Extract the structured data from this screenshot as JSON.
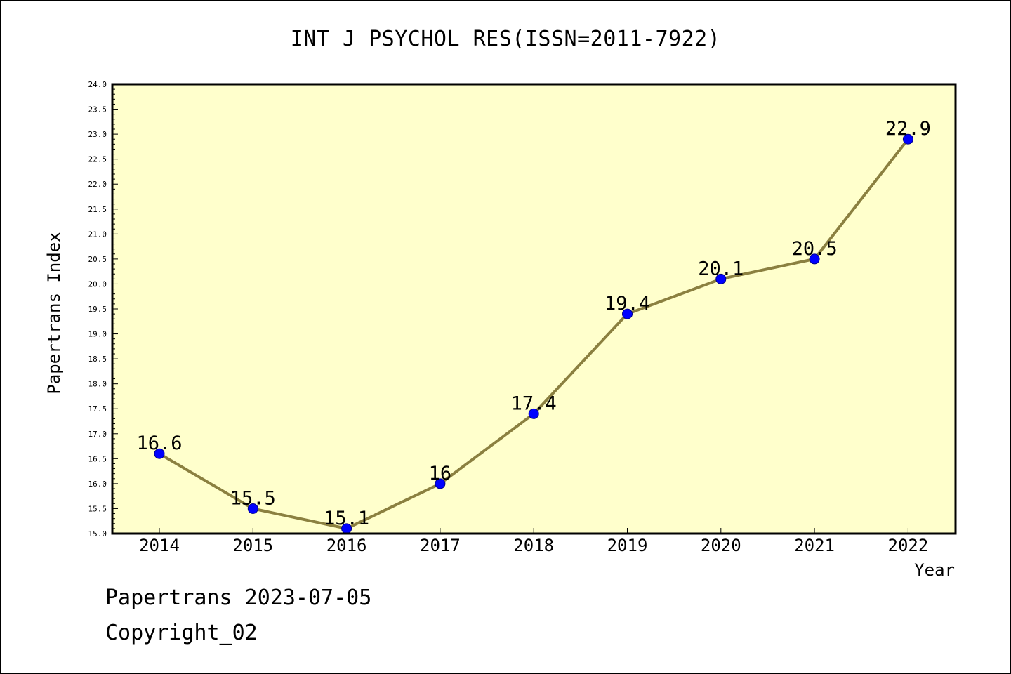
{
  "title": "INT J PSYCHOL RES(ISSN=2011-7922)",
  "footer": {
    "line1": "Papertrans 2023-07-05",
    "line2": "Copyright_02"
  },
  "colors": {
    "plot_background": "#ffffcc",
    "line": "#8b8040",
    "marker": "#0000ff",
    "frame": "#000000"
  },
  "chart_data": {
    "type": "line",
    "title": "INT J PSYCHOL RES(ISSN=2011-7922)",
    "xlabel": "Year",
    "ylabel": "Papertrans Index",
    "categories": [
      "2014",
      "2015",
      "2016",
      "2017",
      "2018",
      "2019",
      "2020",
      "2021",
      "2022"
    ],
    "series": [
      {
        "values": [
          16.6,
          15.5,
          15.1,
          16,
          17.4,
          19.4,
          20.1,
          20.5,
          22.9
        ],
        "data_labels": [
          "16.6",
          "15.5",
          "15.1",
          "16",
          "17.4",
          "19.4",
          "20.1",
          "20.5",
          "22.9"
        ]
      }
    ],
    "ylim": [
      15.0,
      24.0
    ],
    "yticks": [
      "15.0",
      "15.5",
      "16.0",
      "16.5",
      "17.0",
      "17.5",
      "18.0",
      "18.5",
      "19.0",
      "19.5",
      "20.0",
      "20.5",
      "21.0",
      "21.5",
      "22.0",
      "22.5",
      "23.0",
      "23.5",
      "24.0"
    ],
    "grid": false,
    "legend": "none"
  }
}
